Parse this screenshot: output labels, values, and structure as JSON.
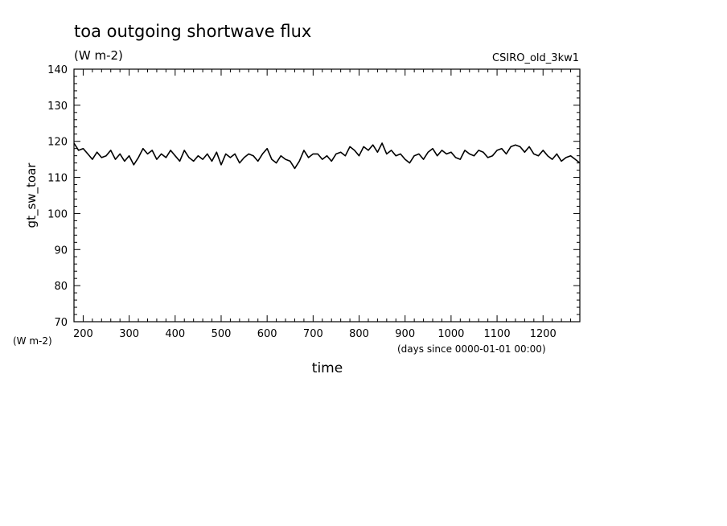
{
  "chart_data": {
    "type": "line",
    "title": "toa outgoing shortwave flux",
    "subtitle": "(W m-2)",
    "run_label": "CSIRO_old_3kw1",
    "xlabel": "time",
    "x_units": "(days since 0000-01-01 00:00)",
    "ylabel": "gt_sw_toar",
    "y_units": "(W m-2)",
    "xlim": [
      180,
      1280
    ],
    "ylim": [
      70,
      140
    ],
    "x_ticks": [
      200,
      300,
      400,
      500,
      600,
      700,
      800,
      900,
      1000,
      1100,
      1200
    ],
    "y_ticks": [
      70,
      80,
      90,
      100,
      110,
      120,
      130,
      140
    ],
    "grid": false,
    "series": [
      {
        "color": "#000000",
        "x": [
          180,
          190,
          200,
          210,
          220,
          230,
          240,
          250,
          260,
          270,
          280,
          290,
          300,
          310,
          320,
          330,
          340,
          350,
          360,
          370,
          380,
          390,
          400,
          410,
          420,
          430,
          440,
          450,
          460,
          470,
          480,
          490,
          500,
          510,
          520,
          530,
          540,
          550,
          560,
          570,
          580,
          590,
          600,
          610,
          620,
          630,
          640,
          650,
          660,
          670,
          680,
          690,
          700,
          710,
          720,
          730,
          740,
          750,
          760,
          770,
          780,
          790,
          800,
          810,
          820,
          830,
          840,
          850,
          860,
          870,
          880,
          890,
          900,
          910,
          920,
          930,
          940,
          950,
          960,
          970,
          980,
          990,
          1000,
          1010,
          1020,
          1030,
          1040,
          1050,
          1060,
          1070,
          1080,
          1090,
          1100,
          1110,
          1120,
          1130,
          1140,
          1150,
          1160,
          1170,
          1180,
          1190,
          1200,
          1210,
          1220,
          1230,
          1240,
          1250,
          1260,
          1270,
          1280
        ],
        "y": [
          119.5,
          117.5,
          118.0,
          116.5,
          115.0,
          117.0,
          115.5,
          116.0,
          117.5,
          115.0,
          116.5,
          114.5,
          116.0,
          113.5,
          115.5,
          118.0,
          116.5,
          117.5,
          115.0,
          116.5,
          115.5,
          117.5,
          116.0,
          114.5,
          117.5,
          115.5,
          114.5,
          116.0,
          115.0,
          116.5,
          114.5,
          117.0,
          113.5,
          116.5,
          115.5,
          116.5,
          114.0,
          115.5,
          116.5,
          116.0,
          114.5,
          116.5,
          118.0,
          115.0,
          114.0,
          116.0,
          115.0,
          114.5,
          112.5,
          114.5,
          117.5,
          115.5,
          116.5,
          116.5,
          115.0,
          116.0,
          114.5,
          116.5,
          117.0,
          116.0,
          118.5,
          117.5,
          116.0,
          118.5,
          117.5,
          119.0,
          117.0,
          119.5,
          116.5,
          117.5,
          116.0,
          116.5,
          115.0,
          114.0,
          116.0,
          116.5,
          115.0,
          117.0,
          118.0,
          116.0,
          117.5,
          116.5,
          117.0,
          115.5,
          115.0,
          117.5,
          116.5,
          116.0,
          117.5,
          117.0,
          115.5,
          116.0,
          117.5,
          118.0,
          116.5,
          118.5,
          119.0,
          118.5,
          117.0,
          118.5,
          116.5,
          116.0,
          117.5,
          116.0,
          115.0,
          116.5,
          114.5,
          115.5,
          116.0,
          115.0,
          114.0
        ]
      }
    ]
  }
}
